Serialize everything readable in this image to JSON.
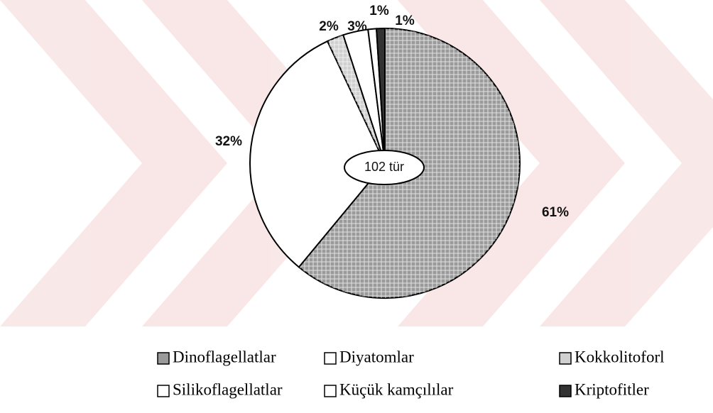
{
  "chart_data": {
    "type": "pie",
    "categories": [
      "Dinoflagellatlar",
      "Diyatomlar",
      "Kokkolitoforl",
      "Silikoflagellatlar",
      "Küçük kamçılılar",
      "Kriptofitler"
    ],
    "values": [
      61,
      32,
      2,
      3,
      1,
      1
    ],
    "value_labels": [
      "61%",
      "32%",
      "2%",
      "3%",
      "1%",
      "1%"
    ],
    "colors": [
      "#9a9a9a",
      "#ffffff",
      "#d0d0d0",
      "#ffffff",
      "#ffffff",
      "#333333"
    ],
    "annotation": "102 tür",
    "legend": "bottom"
  }
}
